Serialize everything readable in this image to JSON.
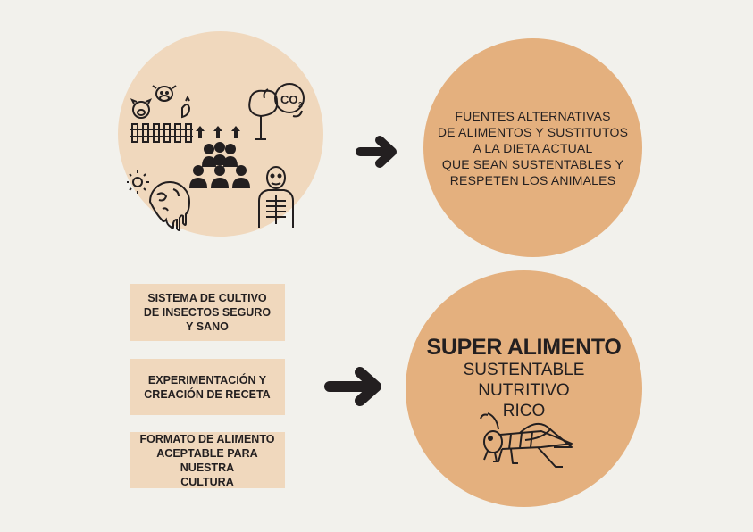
{
  "problems_circle": {
    "icons": [
      "livestock-icon",
      "co2-tree-icon",
      "population-growth-icon",
      "melting-earth-icon",
      "malnourished-person-icon"
    ]
  },
  "alternatives": {
    "lines": [
      "FUENTES ALTERNATIVAS",
      "DE ALIMENTOS Y SUSTITUTOS",
      "A LA DIETA ACTUAL",
      "QUE SEAN SUSTENTABLES Y",
      "RESPETEN LOS ANIMALES"
    ]
  },
  "steps": [
    {
      "lines": [
        "SISTEMA DE CULTIVO",
        "DE INSECTOS SEGURO",
        "Y SANO"
      ]
    },
    {
      "lines": [
        "EXPERIMENTACIÓN Y",
        "CREACIÓN DE RECETA"
      ]
    },
    {
      "lines": [
        "FORMATO DE ALIMENTO",
        "ACEPTABLE PARA NUESTRA",
        "CULTURA"
      ]
    }
  ],
  "superfood": {
    "title": "SUPER ALIMENTO",
    "attributes": [
      "SUSTENTABLE",
      "NUTRITIVO",
      "RICO"
    ],
    "icon": "cricket-icon"
  },
  "colors": {
    "background": "#f2f1ec",
    "light_peach": "#f0d8bd",
    "peach": "#e4b07e",
    "ink": "#231f20"
  }
}
